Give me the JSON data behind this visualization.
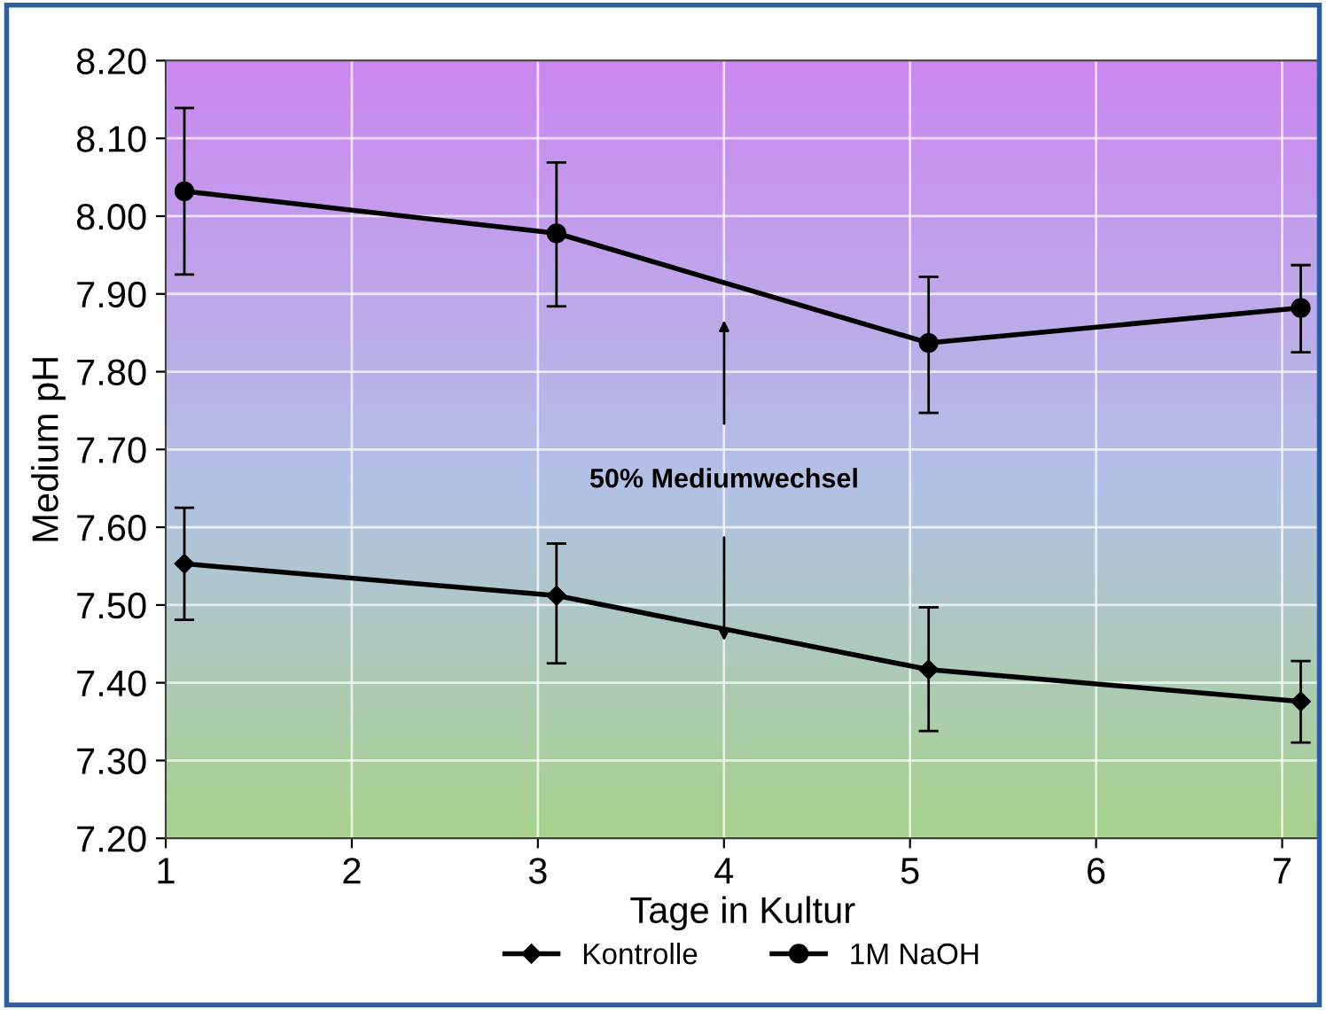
{
  "chart_data": {
    "type": "line",
    "xlabel": "Tage in Kultur",
    "ylabel": "Medium pH",
    "x": [
      1.1,
      3.1,
      5.1,
      7.1
    ],
    "series": [
      {
        "name": "Kontrolle",
        "color": "#000000",
        "marker": "diamond",
        "values": [
          7.553,
          7.512,
          7.417,
          7.376
        ],
        "errors": [
          [
            7.481,
            7.625
          ],
          [
            7.425,
            7.579
          ],
          [
            7.338,
            7.497
          ],
          [
            7.323,
            7.428
          ]
        ]
      },
      {
        "name": "1M NaOH",
        "color": "#000000",
        "marker": "circle",
        "values": [
          8.032,
          7.978,
          7.837,
          7.882
        ],
        "errors": [
          [
            7.925,
            8.139
          ],
          [
            7.884,
            8.069
          ],
          [
            7.747,
            7.922
          ],
          [
            7.825,
            7.937
          ]
        ]
      }
    ],
    "xlim": [
      1,
      7.2
    ],
    "xticks": [
      1,
      2,
      3,
      4,
      5,
      6,
      7
    ],
    "ylim": [
      7.2,
      8.2
    ],
    "yticks": [
      {
        "value": 7.2,
        "label": "7.20"
      },
      {
        "value": 7.3,
        "label": "7.30"
      },
      {
        "value": 7.4,
        "label": "7.40"
      },
      {
        "value": 7.5,
        "label": "7.50"
      },
      {
        "value": 7.6,
        "label": "7.60"
      },
      {
        "value": 7.7,
        "label": "7.70"
      },
      {
        "value": 7.8,
        "label": "7.80"
      },
      {
        "value": 7.9,
        "label": "7.90"
      },
      {
        "value": 8.0,
        "label": "8.00"
      },
      {
        "value": 8.1,
        "label": "8.10"
      },
      {
        "value": 8.2,
        "label": "8.20"
      }
    ],
    "annotations": [
      "50% Mediumwechsel"
    ],
    "grid": true,
    "legend": "bottom",
    "line_style": "solid"
  }
}
